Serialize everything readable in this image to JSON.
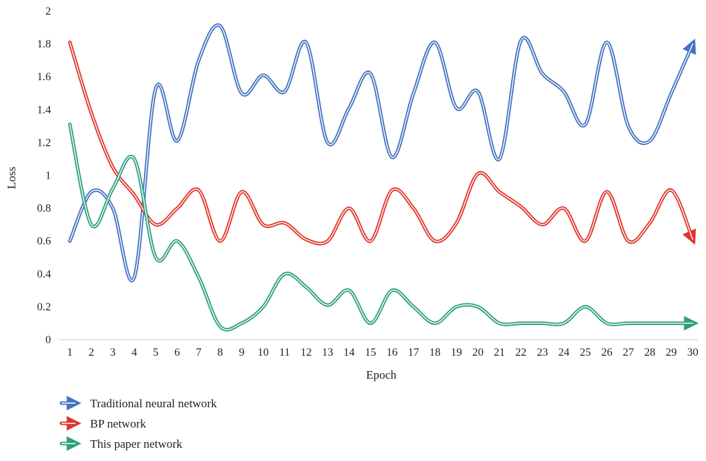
{
  "chart_data": {
    "type": "line",
    "xlabel": "Epoch",
    "ylabel": "Loss",
    "x": [
      1,
      2,
      3,
      4,
      5,
      6,
      7,
      8,
      9,
      10,
      11,
      12,
      13,
      14,
      15,
      16,
      17,
      18,
      19,
      20,
      21,
      22,
      23,
      24,
      25,
      26,
      27,
      28,
      29,
      30
    ],
    "ylim": [
      0,
      2
    ],
    "yticks": [
      "0",
      "0.2",
      "0.4",
      "0.6",
      "0.8",
      "1",
      "1.2",
      "1.4",
      "1.6",
      "1.8",
      "2"
    ],
    "grid": false,
    "legend_position": "bottom-left",
    "series": [
      {
        "name": "Traditional neural network",
        "color": "#4472c4",
        "values": [
          0.6,
          0.9,
          0.8,
          0.38,
          1.53,
          1.21,
          1.7,
          1.91,
          1.5,
          1.61,
          1.51,
          1.81,
          1.2,
          1.41,
          1.62,
          1.11,
          1.5,
          1.81,
          1.41,
          1.51,
          1.1,
          1.82,
          1.62,
          1.51,
          1.31,
          1.81,
          1.3,
          1.21,
          1.5,
          1.8
        ]
      },
      {
        "name": "BP network",
        "color": "#e0352b",
        "values": [
          1.81,
          1.38,
          1.05,
          0.88,
          0.7,
          0.8,
          0.91,
          0.6,
          0.9,
          0.7,
          0.71,
          0.61,
          0.6,
          0.8,
          0.6,
          0.91,
          0.8,
          0.6,
          0.71,
          1.01,
          0.9,
          0.81,
          0.7,
          0.8,
          0.6,
          0.9,
          0.6,
          0.71,
          0.91,
          0.61
        ]
      },
      {
        "name": "This paper network",
        "color": "#2e9e7e",
        "values": [
          1.31,
          0.7,
          0.92,
          1.1,
          0.5,
          0.6,
          0.38,
          0.08,
          0.1,
          0.2,
          0.4,
          0.32,
          0.21,
          0.3,
          0.1,
          0.3,
          0.2,
          0.1,
          0.2,
          0.2,
          0.1,
          0.1,
          0.1,
          0.1,
          0.2,
          0.1,
          0.1,
          0.1,
          0.1,
          0.1
        ]
      }
    ]
  }
}
